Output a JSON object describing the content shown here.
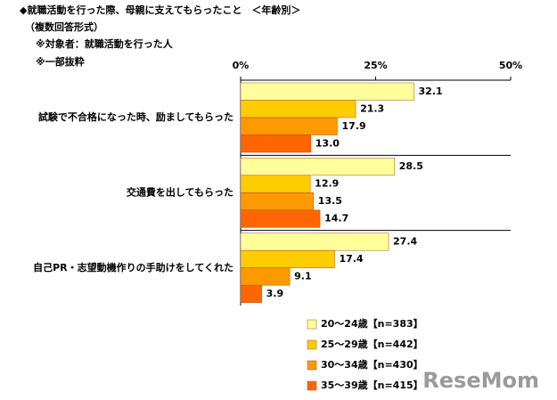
{
  "chart_data": {
    "type": "hbar",
    "title": "◆就職活動を行った際、母親に支えてもらったこと　＜年齢別＞",
    "subtitle": "（複数回答形式）",
    "notes": [
      "※対象者：就職活動を行った人",
      "※一部抜粋"
    ],
    "categories": [
      "試験で不合格になった時、励ましてもらった",
      "交通費を出してもらった",
      "自己PR・志望動機作りの手助けをしてくれた"
    ],
    "series": [
      {
        "name": "20～24歳【n=383】",
        "color": "#ffff99",
        "values": [
          32.1,
          28.5,
          27.4
        ],
        "value_labels": [
          "32.1",
          "28.5",
          "27.4"
        ]
      },
      {
        "name": "25～29歳【n=442】",
        "color": "#ffcc00",
        "values": [
          21.3,
          12.9,
          17.4
        ],
        "value_labels": [
          "21.3",
          "12.9",
          "17.4"
        ]
      },
      {
        "name": "30～34歳【n=430】",
        "color": "#ff9900",
        "values": [
          17.9,
          13.5,
          9.1
        ],
        "value_labels": [
          "17.9",
          "13.5",
          "9.1"
        ]
      },
      {
        "name": "35～39歳【n=415】",
        "color": "#ff6600",
        "values": [
          13.0,
          14.7,
          3.9
        ],
        "value_labels": [
          "13.0",
          "14.7",
          "3.9"
        ]
      }
    ],
    "xlim": [
      0,
      50
    ],
    "xticks": [
      {
        "value": 0,
        "label": "0%"
      },
      {
        "value": 25,
        "label": "25%"
      },
      {
        "value": 50,
        "label": "50%"
      }
    ],
    "watermark": "ReseMom"
  }
}
